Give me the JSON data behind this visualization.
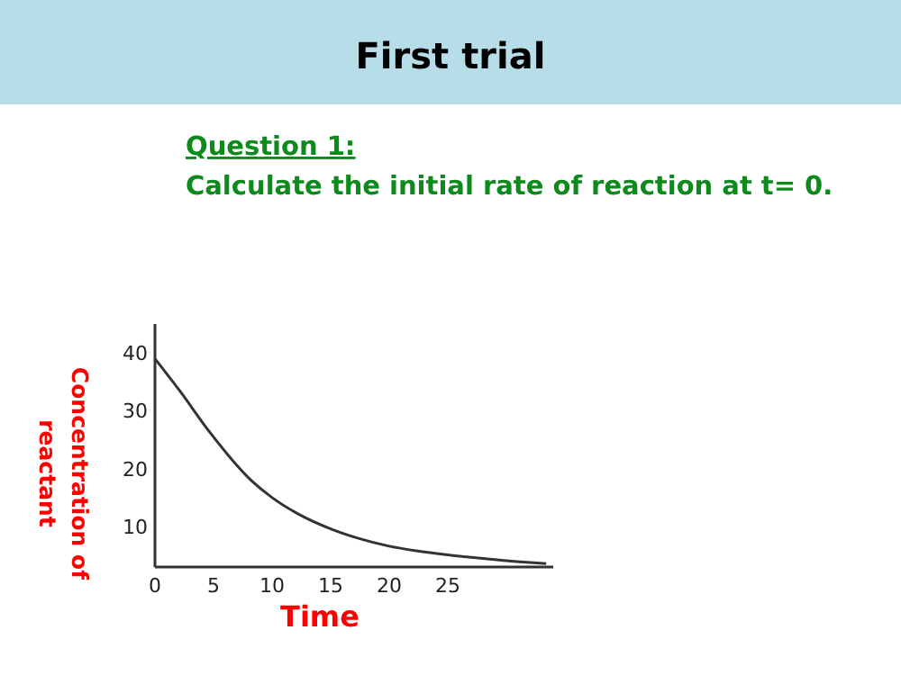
{
  "chart_data": {
    "type": "line",
    "title": "First trial",
    "subtitle": "Question 1:",
    "annotations": [
      "Calculate the initial rate of reaction at t= 0."
    ],
    "xlabel": "Time",
    "ylabel": "Concentration of reactant",
    "series": [
      {
        "color": "#333333",
        "x": [
          0,
          2.1,
          4.6,
          8.2,
          10,
          12.2,
          15,
          17.3,
          20,
          22.3,
          25,
          27.4,
          30,
          33.4
        ],
        "values": [
          39,
          33.5,
          26.5,
          18,
          15,
          12.2,
          9.6,
          8,
          6.6,
          5.8,
          5.1,
          4.6,
          4.1,
          3.6
        ]
      }
    ],
    "xlim": [
      0,
      34
    ],
    "xticks": [
      0,
      5,
      10,
      15,
      20,
      25
    ],
    "ylim": [
      3,
      45
    ],
    "yticks": [
      10,
      20,
      30,
      40
    ],
    "line_style": "solid"
  }
}
